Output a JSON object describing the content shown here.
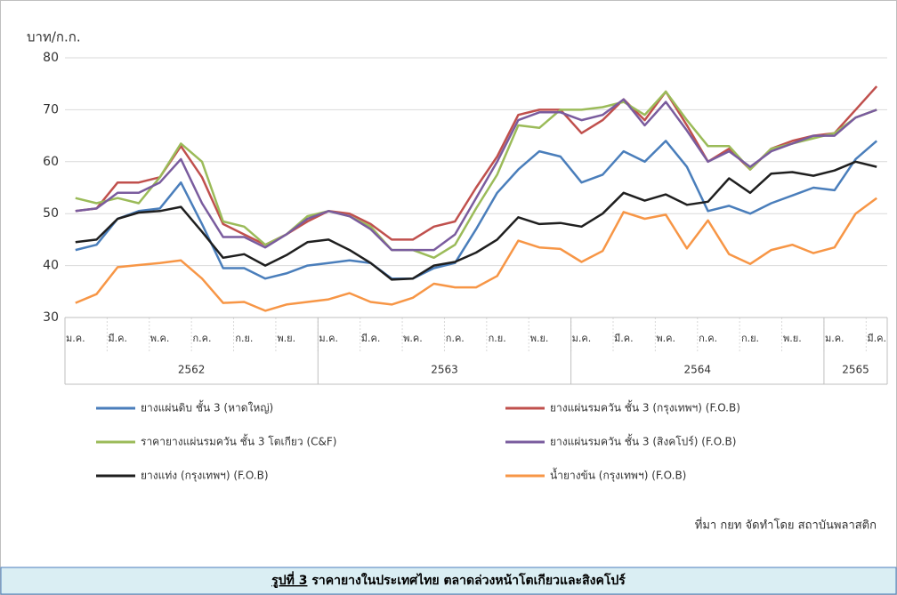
{
  "chart_data": {
    "type": "line",
    "y_label": "บาท/ก.ก.",
    "categories": [
      "ม.ค.",
      null,
      "มี.ค.",
      null,
      "พ.ค.",
      null,
      "ก.ค.",
      null,
      "ก.ย.",
      null,
      "พ.ย.",
      null,
      "ม.ค.",
      null,
      "มี.ค.",
      null,
      "พ.ค.",
      null,
      "ก.ค.",
      null,
      "ก.ย.",
      null,
      "พ.ย.",
      null,
      "ม.ค.",
      null,
      "มี.ค.",
      null,
      "พ.ค.",
      null,
      "ก.ค.",
      null,
      "ก.ย.",
      null,
      "พ.ย.",
      null,
      "ม.ค.",
      null,
      "มี.ค."
    ],
    "year_groups": [
      "2562",
      "2563",
      "2564",
      "2565"
    ],
    "ylim": [
      30,
      80
    ],
    "yticks": [
      30,
      40,
      50,
      60,
      70,
      80
    ],
    "grid": true,
    "series": [
      {
        "name": "ยางแผ่นดิบ ชั้น 3 (หาดใหญ่)",
        "color": "#4a7ebb",
        "values": [
          43,
          44,
          49,
          50.5,
          51,
          56,
          48,
          39.5,
          39.5,
          37.5,
          38.5,
          40,
          40.5,
          41,
          40.5,
          37.5,
          37.5,
          39.5,
          40.5,
          47,
          54,
          58.5,
          62,
          61,
          56,
          57.5,
          62,
          60,
          64,
          59,
          50.5,
          51.5,
          50,
          52,
          53.5,
          55,
          54.5,
          60.5,
          64
        ]
      },
      {
        "name": "ยางแผ่นรมควัน ชั้น 3 (กรุงเทพฯ) (F.O.B)",
        "color": "#c0504d",
        "values": [
          50.5,
          51,
          56,
          56,
          57,
          63,
          57,
          48,
          46,
          44,
          46,
          48.5,
          50.5,
          50,
          48,
          45,
          45,
          47.5,
          48.5,
          55,
          61,
          69,
          70,
          70,
          65.5,
          68,
          72,
          68,
          73.5,
          67,
          60,
          62.5,
          58.5,
          62.5,
          64,
          65,
          65.5,
          70,
          74.5
        ]
      },
      {
        "name": "ราคายางแผ่นรมควัน ชั้น 3 โตเกียว (C&F)",
        "color": "#9bbb59",
        "values": [
          53,
          52,
          53,
          52,
          57,
          63.5,
          60,
          48.5,
          47.5,
          44,
          46,
          49.5,
          50.5,
          49.5,
          47.5,
          43,
          43,
          41.5,
          44,
          51,
          57.5,
          67,
          66.5,
          70,
          70,
          70.5,
          71.5,
          69,
          73.5,
          68,
          63,
          63,
          58.5,
          62.5,
          63.5,
          64.5,
          65.5,
          68.5,
          70
        ]
      },
      {
        "name": "ยางแผ่นรมควัน ชั้น 3 (สิงคโปร์) (F.O.B)",
        "color": "#7a5c9e",
        "values": [
          50.5,
          51,
          54,
          54,
          56,
          60.5,
          52,
          45.5,
          45.5,
          43.5,
          46,
          49,
          50.5,
          49.5,
          47,
          43,
          43,
          43,
          46,
          53,
          60,
          68,
          69.5,
          69.5,
          68,
          69,
          72,
          67,
          71.5,
          66,
          60,
          62,
          59,
          62,
          63.5,
          65,
          65,
          68.5,
          70
        ]
      },
      {
        "name": "ยางแท่ง (กรุงเทพฯ) (F.O.B)",
        "color": "#1f1f1f",
        "values": [
          44.5,
          45,
          49,
          50.2,
          50.5,
          51.3,
          46.5,
          41.5,
          42.2,
          40,
          42,
          44.5,
          45,
          43,
          40.5,
          37.3,
          37.5,
          40,
          40.7,
          42.5,
          45,
          49.3,
          48,
          48.2,
          47.5,
          50,
          54,
          52.5,
          53.7,
          51.7,
          52.3,
          56.8,
          54,
          57.7,
          58,
          57.3,
          58.3,
          60,
          59
        ]
      },
      {
        "name": "น้ำยางข้น (กรุงเทพฯ) (F.O.B)",
        "color": "#f79646",
        "values": [
          32.8,
          34.5,
          39.7,
          40.1,
          40.5,
          41,
          37.5,
          32.8,
          33,
          31.3,
          32.5,
          33,
          33.5,
          34.7,
          33,
          32.5,
          33.8,
          36.5,
          35.8,
          35.8,
          38,
          44.8,
          43.5,
          43.2,
          40.7,
          42.8,
          50.3,
          49,
          49.8,
          43.3,
          48.7,
          42.2,
          40.3,
          43,
          44,
          42.4,
          43.5,
          50,
          53
        ]
      }
    ],
    "source": "ที่มา กยท จัดทำโดย สถาบันพลาสติก",
    "caption_label": "รูปที่ 3",
    "caption_text": "ราคายางในประเทศไทย ตลาดล่วงหน้าโตเกียวและสิงคโปร์"
  }
}
